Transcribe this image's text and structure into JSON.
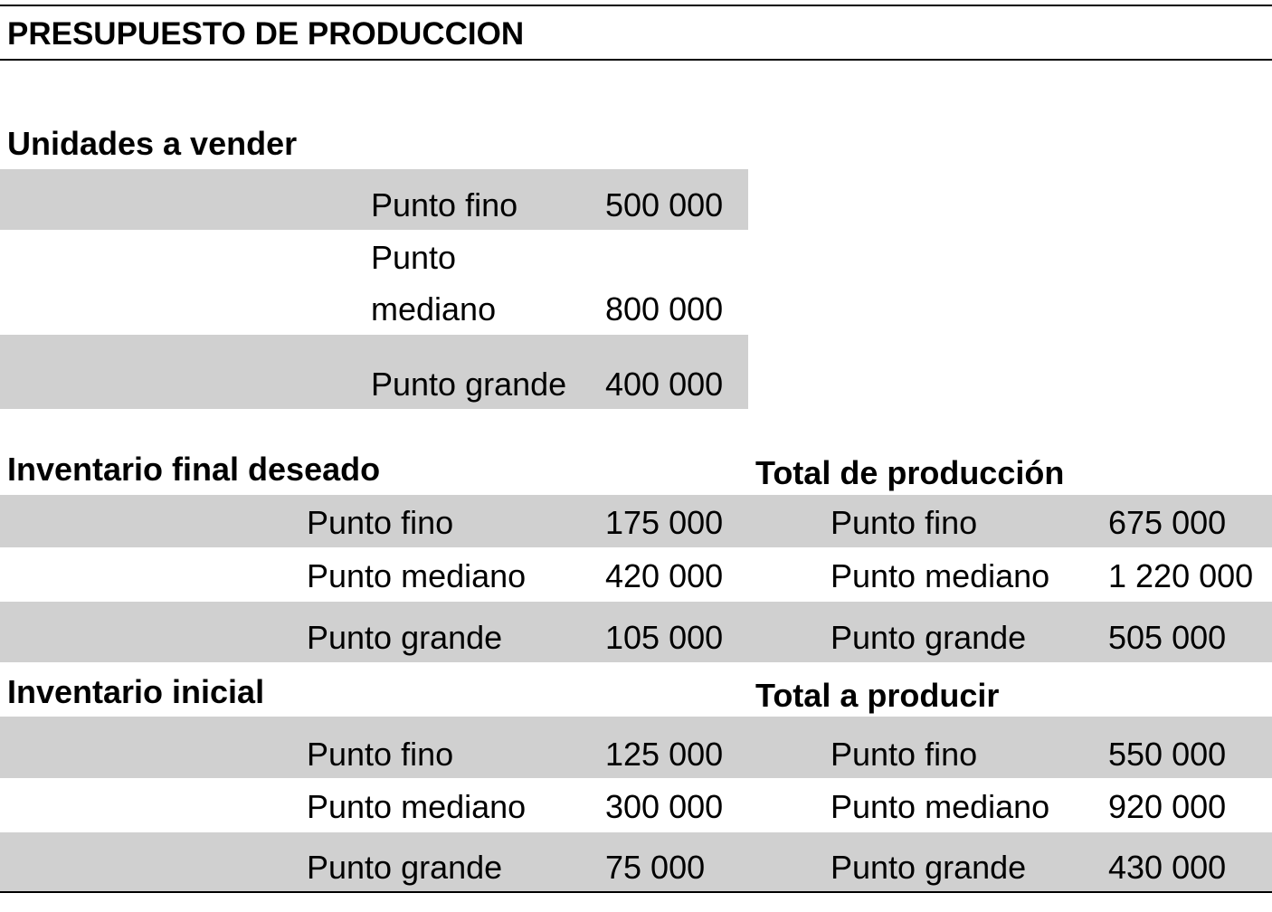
{
  "title": "PRESUPUESTO DE PRODUCCION",
  "colors": {
    "band": "#d0d0d0",
    "rule": "#000000",
    "text": "#000000"
  },
  "unidades_a_vender": {
    "heading": "Unidades a vender",
    "rows": [
      {
        "label": "Punto fino",
        "value": "500 000"
      },
      {
        "label_line1": "Punto",
        "label_line2": "mediano",
        "value": "800 000"
      },
      {
        "label": "Punto grande",
        "value": "400 000"
      }
    ]
  },
  "inventario_final": {
    "heading": "Inventario final deseado",
    "rows": [
      {
        "label": "Punto fino",
        "value": "175 000"
      },
      {
        "label": "Punto mediano",
        "value": "420 000"
      },
      {
        "label": "Punto grande",
        "value": "105 000"
      }
    ]
  },
  "total_produccion": {
    "heading": "Total de producción",
    "rows": [
      {
        "label": "Punto fino",
        "value": "675 000"
      },
      {
        "label": "Punto mediano",
        "value": "1 220 000"
      },
      {
        "label": "Punto grande",
        "value": "505 000"
      }
    ]
  },
  "inventario_inicial": {
    "heading": "Inventario inicial",
    "rows": [
      {
        "label": "Punto fino",
        "value": "125 000"
      },
      {
        "label": "Punto mediano",
        "value": "300 000"
      },
      {
        "label": "Punto grande",
        "value": "75 000"
      }
    ]
  },
  "total_a_producir": {
    "heading": "Total a producir",
    "rows": [
      {
        "label": "Punto fino",
        "value": "550 000"
      },
      {
        "label": "Punto mediano",
        "value": "920 000"
      },
      {
        "label": "Punto grande",
        "value": "430 000"
      }
    ]
  }
}
